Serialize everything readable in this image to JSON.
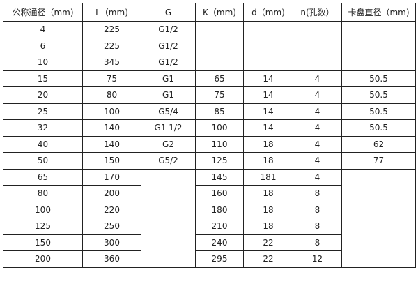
{
  "headers": [
    "公称通径（mm)",
    "L（mm)",
    "G",
    "K（mm)",
    "d（mm)",
    "n(孔数）",
    "卡盘直径（mm)"
  ],
  "rows": [
    {
      "dn": "4",
      "L": "225",
      "G": "G1/2"
    },
    {
      "dn": "6",
      "L": "225",
      "G": "G1/2"
    },
    {
      "dn": "10",
      "L": "345",
      "G": "G1/2"
    },
    {
      "dn": "15",
      "L": "75",
      "G": "G1",
      "K": "65",
      "d": "14",
      "n": "4",
      "chuck": "50.5"
    },
    {
      "dn": "20",
      "L": "80",
      "G": "G1",
      "K": "75",
      "d": "14",
      "n": "4",
      "chuck": "50.5"
    },
    {
      "dn": "25",
      "L": "100",
      "G": "G5/4",
      "K": "85",
      "d": "14",
      "n": "4",
      "chuck": "50.5"
    },
    {
      "dn": "32",
      "L": "140",
      "G": "G1  1/2",
      "K": "100",
      "d": "14",
      "n": "4",
      "chuck": "50.5"
    },
    {
      "dn": "40",
      "L": "140",
      "G": "G2",
      "K": "110",
      "d": "18",
      "n": "4",
      "chuck": "62"
    },
    {
      "dn": "50",
      "L": "150",
      "G": "G5/2",
      "K": "125",
      "d": "18",
      "n": "4",
      "chuck": "77"
    },
    {
      "dn": "65",
      "L": "170",
      "K": "145",
      "d": "181",
      "n": "4"
    },
    {
      "dn": "80",
      "L": "200",
      "K": "160",
      "d": "18",
      "n": "8"
    },
    {
      "dn": "100",
      "L": "220",
      "K": "180",
      "d": "18",
      "n": "8"
    },
    {
      "dn": "125",
      "L": "250",
      "K": "210",
      "d": "18",
      "n": "8"
    },
    {
      "dn": "150",
      "L": "300",
      "K": "240",
      "d": "22",
      "n": "8"
    },
    {
      "dn": "200",
      "L": "360",
      "K": "295",
      "d": "22",
      "n": "12"
    }
  ]
}
